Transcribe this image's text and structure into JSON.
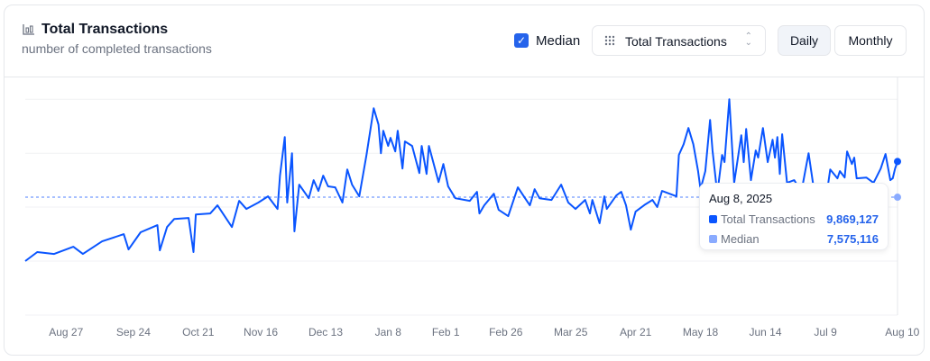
{
  "header": {
    "title": "Total Transactions",
    "subtitle": "number of completed transactions",
    "title_icon": "bar-chart-icon"
  },
  "controls": {
    "median_label": "Median",
    "median_checked": true,
    "metric_select": "Total Transactions",
    "daily_label": "Daily",
    "monthly_label": "Monthly",
    "active_period": "Daily"
  },
  "colors": {
    "series": "#0a55ff",
    "median": "#8aabff",
    "accent": "#2563eb"
  },
  "tooltip": {
    "date": "Aug 8, 2025",
    "rows": [
      {
        "name": "Total Transactions",
        "value": "9,869,127"
      },
      {
        "name": "Median",
        "value": "7,575,116"
      }
    ]
  },
  "chart_data": {
    "type": "line",
    "title": "Total Transactions",
    "xlabel": "",
    "ylabel": "",
    "x_ticks": [
      "Aug 27",
      "Sep 24",
      "Oct 21",
      "Nov 16",
      "Dec 13",
      "Jan 8",
      "Feb 1",
      "Feb 26",
      "Mar 25",
      "Apr 21",
      "May 18",
      "Jun 14",
      "Jul 9",
      "Aug 10"
    ],
    "x_tick_dates": [
      "2024-08-27",
      "2024-09-24",
      "2024-10-21",
      "2024-11-16",
      "2024-12-13",
      "2025-01-08",
      "2025-02-01",
      "2025-02-26",
      "2025-03-25",
      "2025-04-21",
      "2025-05-18",
      "2025-06-14",
      "2025-07-09",
      "2025-08-10"
    ],
    "ylim": [
      0,
      14000000
    ],
    "y_gridlines": [
      0,
      3470000,
      6940000,
      10400000,
      13870000
    ],
    "y_axis_labels_shown": false,
    "grid": true,
    "median": 7575116,
    "series": [
      {
        "name": "Total Transactions",
        "x": [
          "2024-08-10",
          "2024-08-15",
          "2024-08-22",
          "2024-08-30",
          "2024-09-03",
          "2024-09-11",
          "2024-09-20",
          "2024-09-22",
          "2024-09-27",
          "2024-10-04",
          "2024-10-05",
          "2024-10-08",
          "2024-10-11",
          "2024-10-17",
          "2024-10-19",
          "2024-10-20",
          "2024-10-26",
          "2024-10-29",
          "2024-11-04",
          "2024-11-07",
          "2024-11-10",
          "2024-11-15",
          "2024-11-19",
          "2024-11-23",
          "2024-11-24",
          "2024-11-26",
          "2024-11-27",
          "2024-11-29",
          "2024-11-30",
          "2024-12-02",
          "2024-12-06",
          "2024-12-08",
          "2024-12-10",
          "2024-12-12",
          "2024-12-14",
          "2024-12-17",
          "2024-12-20",
          "2024-12-22",
          "2024-12-24",
          "2024-12-27",
          "2024-12-30",
          "2025-01-02",
          "2025-01-04",
          "2025-01-05",
          "2025-01-06",
          "2025-01-08",
          "2025-01-09",
          "2025-01-11",
          "2025-01-12",
          "2025-01-14",
          "2025-01-15",
          "2025-01-18",
          "2025-01-21",
          "2025-01-22",
          "2025-01-24",
          "2025-01-25",
          "2025-01-29",
          "2025-01-31",
          "2025-02-02",
          "2025-02-05",
          "2025-02-11",
          "2025-02-14",
          "2025-02-15",
          "2025-02-17",
          "2025-02-21",
          "2025-02-23",
          "2025-02-27",
          "2025-03-03",
          "2025-03-06",
          "2025-03-08",
          "2025-03-10",
          "2025-03-12",
          "2025-03-17",
          "2025-03-21",
          "2025-03-24",
          "2025-03-27",
          "2025-03-31",
          "2025-04-02",
          "2025-04-03",
          "2025-04-06",
          "2025-04-08",
          "2025-04-09",
          "2025-04-13",
          "2025-04-15",
          "2025-04-17",
          "2025-04-19",
          "2025-04-21",
          "2025-04-25",
          "2025-04-28",
          "2025-04-30",
          "2025-05-02",
          "2025-05-08",
          "2025-05-09",
          "2025-05-11",
          "2025-05-13",
          "2025-05-15",
          "2025-05-17",
          "2025-05-18",
          "2025-05-20",
          "2025-05-22",
          "2025-05-23",
          "2025-05-25",
          "2025-05-27",
          "2025-05-28",
          "2025-05-30",
          "2025-06-01",
          "2025-06-04",
          "2025-06-05",
          "2025-06-06",
          "2025-06-08",
          "2025-06-10",
          "2025-06-11",
          "2025-06-13",
          "2025-06-15",
          "2025-06-17",
          "2025-06-18",
          "2025-06-19",
          "2025-06-20",
          "2025-06-21",
          "2025-06-23",
          "2025-06-26",
          "2025-06-29",
          "2025-07-02",
          "2025-07-04",
          "2025-07-10",
          "2025-07-11",
          "2025-07-14",
          "2025-07-15",
          "2025-07-17",
          "2025-07-18",
          "2025-07-20",
          "2025-07-21",
          "2025-07-22",
          "2025-07-26",
          "2025-07-29",
          "2025-07-30",
          "2025-08-01",
          "2025-08-03",
          "2025-08-05",
          "2025-08-06",
          "2025-08-07",
          "2025-08-08"
        ],
        "y": [
          3470000,
          4050000,
          3930000,
          4390000,
          3930000,
          4740000,
          5200000,
          4220000,
          5320000,
          5780000,
          4160000,
          5660000,
          6180000,
          6240000,
          4050000,
          6470000,
          6530000,
          7050000,
          5660000,
          7340000,
          6820000,
          7230000,
          7630000,
          6820000,
          8960000,
          11440000,
          7230000,
          10400000,
          5380000,
          8380000,
          7510000,
          8670000,
          7980000,
          8960000,
          8270000,
          8210000,
          7230000,
          9360000,
          8380000,
          7630000,
          10290000,
          13290000,
          12250000,
          10400000,
          11850000,
          10870000,
          11390000,
          10520000,
          11850000,
          9420000,
          11160000,
          10870000,
          9130000,
          10870000,
          9070000,
          10870000,
          8550000,
          9710000,
          8270000,
          7510000,
          7340000,
          7920000,
          6530000,
          7050000,
          7800000,
          6760000,
          6360000,
          8210000,
          7510000,
          7050000,
          8090000,
          7510000,
          7400000,
          8380000,
          7230000,
          6820000,
          7400000,
          6530000,
          7400000,
          5900000,
          7630000,
          6820000,
          7690000,
          7920000,
          7050000,
          5490000,
          6650000,
          7110000,
          7400000,
          6940000,
          7980000,
          7630000,
          10290000,
          10980000,
          12020000,
          10980000,
          9250000,
          8090000,
          9250000,
          12540000,
          10580000,
          7800000,
          10290000,
          9830000,
          13870000,
          8500000,
          11560000,
          9830000,
          11960000,
          8670000,
          10580000,
          10120000,
          12020000,
          9830000,
          11270000,
          10120000,
          11440000,
          9070000,
          11620000,
          8500000,
          8670000,
          7920000,
          10400000,
          8270000,
          8270000,
          9360000,
          8790000,
          9250000,
          8840000,
          10520000,
          9710000,
          10120000,
          8790000,
          8840000,
          8500000,
          8790000,
          9420000,
          10350000,
          8670000,
          8790000,
          9420000,
          9869127
        ]
      }
    ]
  }
}
